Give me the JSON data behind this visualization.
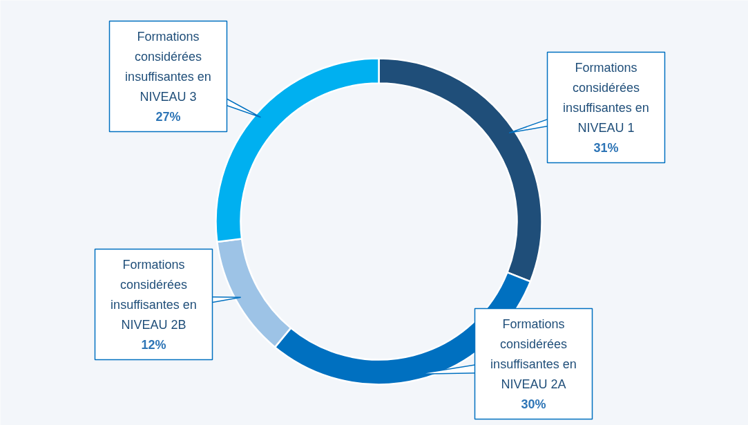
{
  "chart_data": {
    "type": "donut",
    "categories": [
      "Formations considérées insuffisantes en NIVEAU 1",
      "Formations considérées insuffisantes en NIVEAU 2A",
      "Formations considérées insuffisantes en NIVEAU 2B",
      "Formations considérées insuffisantes en NIVEAU 3"
    ],
    "values": [
      31,
      30,
      12,
      27
    ],
    "value_labels": [
      "31%",
      "30%",
      "12%",
      "27%"
    ],
    "colors": [
      "#1f4e79",
      "#0070c0",
      "#9dc3e6",
      "#00b0f0"
    ]
  }
}
